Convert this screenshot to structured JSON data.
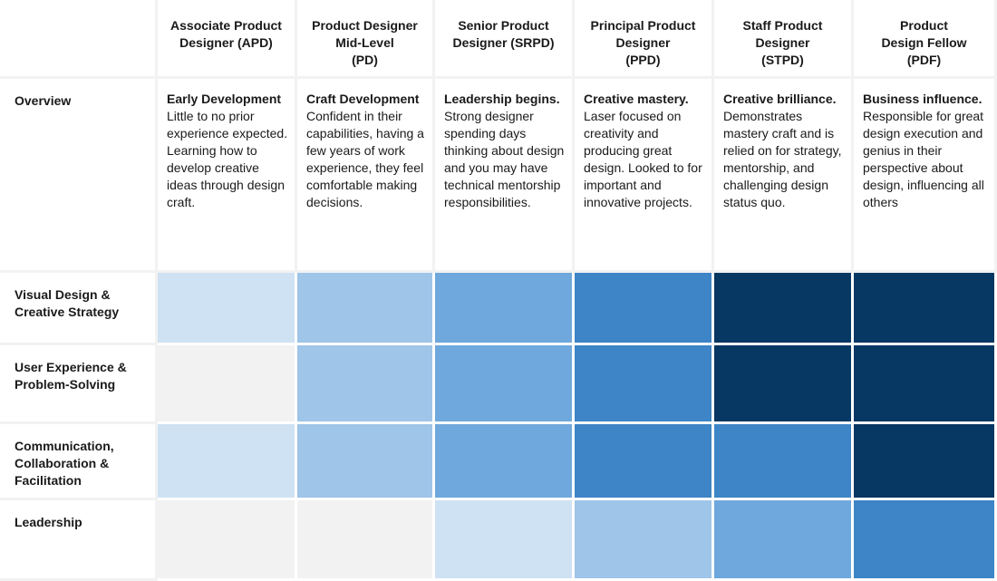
{
  "columns": [
    "Associate Product\nDesigner (APD)",
    "Product Designer\nMid-Level\n(PD)",
    "Senior Product\nDesigner (SRPD)",
    "Principal Product\nDesigner\n(PPD)",
    "Staff Product\nDesigner\n(STPD)",
    "Product\nDesign Fellow\n(PDF)"
  ],
  "overview": {
    "label": "Overview",
    "cells": [
      {
        "title": "Early Development",
        "text": "Little to no prior experience expected. Learning how to develop creative ideas through design craft."
      },
      {
        "title": "Craft Development",
        "text": "Confident  in their capabilities, having a few years of work experience, they feel comfortable making decisions."
      },
      {
        "title": "Leadership begins.",
        "text": "Strong designer spending days thinking about design and you may have technical mentorship responsibilities."
      },
      {
        "title": "Creative mastery.",
        "text": "Laser focused on creativity and producing great design. Looked to for important  and innovative projects."
      },
      {
        "title": "Creative brilliance.",
        "text": "Demonstrates mastery craft and is relied on for strategy, mentorship, and challenging design status quo."
      },
      {
        "title": "Business influence.",
        "text": "Responsible for great design execution and genius in their perspective about design, influencing all others"
      }
    ]
  },
  "rows": [
    {
      "label": "Visual Design &\nCreative Strategy",
      "levels": [
        1,
        2,
        3,
        4,
        5,
        5
      ]
    },
    {
      "label": "User Experience &\nProblem-Solving",
      "levels": [
        0,
        2,
        3,
        4,
        5,
        5
      ]
    },
    {
      "label": "Communication,\nCollaboration &\nFacilitation",
      "levels": [
        1,
        2,
        3,
        4,
        4,
        5
      ]
    },
    {
      "label": "Leadership",
      "levels": [
        0,
        0,
        1,
        2,
        3,
        4
      ]
    }
  ]
}
